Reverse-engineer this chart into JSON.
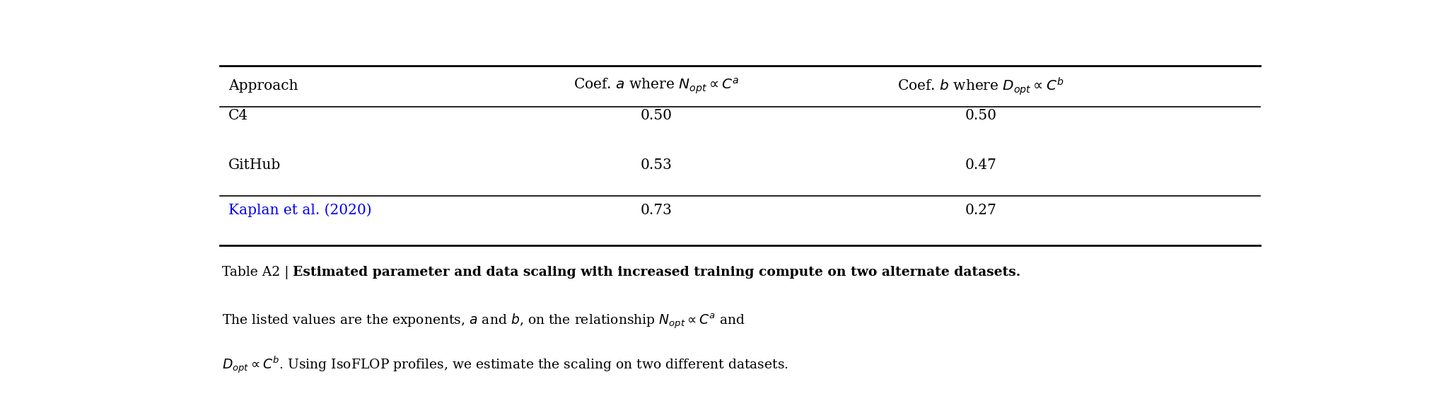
{
  "figsize": [
    20.42,
    5.84
  ],
  "dpi": 100,
  "background_color": "#ffffff",
  "table": {
    "col_headers": [
      "Approach",
      "Coef. $a$ where $N_{opt} \\propto C^{a}$",
      "Coef. $b$ where $D_{opt} \\propto C^{b}$"
    ],
    "rows": [
      {
        "approach": "C4",
        "coef_a": "0.50",
        "coef_b": "0.50",
        "color": "#000000"
      },
      {
        "approach": "GitHub",
        "coef_a": "0.53",
        "coef_b": "0.47",
        "color": "#000000"
      },
      {
        "approach": "Kaplan et al. (2020)",
        "coef_a": "0.73",
        "coef_b": "0.27",
        "color": "#0000ee"
      }
    ],
    "header_color": "#000000"
  },
  "caption_prefix": "Table A2 | ",
  "caption_bold": "Estimated parameter and data scaling with increased training compute on two alternate datasets.",
  "caption_normal_line2": "The listed values are the exponents, $a$ and $b$, on the relationship $N_{opt} \\propto C^{a}$ and",
  "caption_normal_line3": "$D_{opt} \\propto C^{b}$. Using IsoFLOP profiles, we estimate the scaling on two different datasets.",
  "font_size_table": 14.5,
  "font_size_caption": 13.5
}
